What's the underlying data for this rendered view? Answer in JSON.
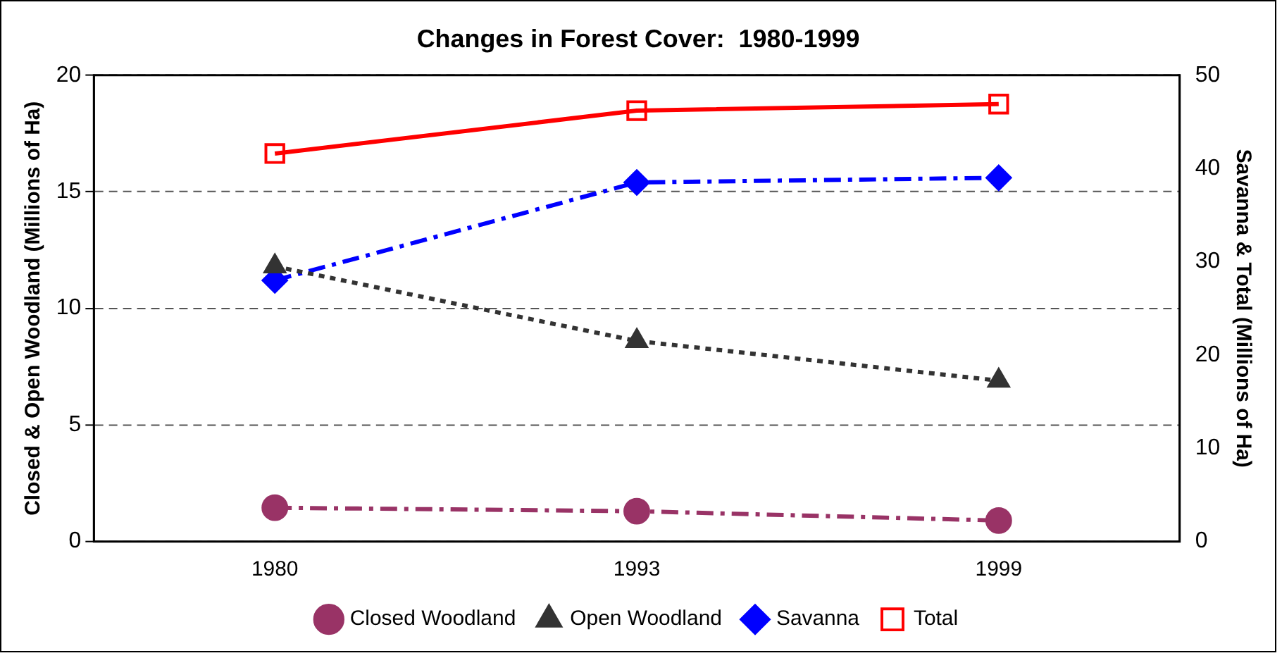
{
  "chart_data": {
    "type": "line",
    "title": "Changes in Forest Cover:  1980-1999",
    "ylabel": "Closed & Open Woodland (Millions of Ha)",
    "y2label": "Savanna & Total (Millions of Ha)",
    "categories": [
      "1980",
      "1993",
      "1999"
    ],
    "series": [
      {
        "name": "Closed Woodland",
        "color": "#993366",
        "values": [
          1.45,
          1.3,
          0.9
        ],
        "marker": "circle",
        "line_style": "dashed"
      },
      {
        "name": "Open Woodland",
        "color": "#333333",
        "values": [
          11.8,
          8.6,
          6.9
        ],
        "marker": "triangle",
        "line_style": "dotted"
      },
      {
        "name": "Savanna",
        "color": "#0000ff",
        "values": [
          28,
          38.5,
          39
        ],
        "axis": "y2",
        "marker": "diamond",
        "line_style": "dashed"
      },
      {
        "name": "Total",
        "color": "#ff0000",
        "values": [
          41.6,
          46.2,
          46.9
        ],
        "axis": "y2",
        "marker": "square",
        "line_style": "solid"
      }
    ],
    "ylim": [
      0,
      20
    ],
    "yticks": [
      0,
      5,
      10,
      15,
      20
    ],
    "y2lim": [
      0,
      50
    ],
    "y2ticks": [
      0,
      10,
      20,
      30,
      40,
      50
    ],
    "grid": "y",
    "legend": "bottom"
  }
}
